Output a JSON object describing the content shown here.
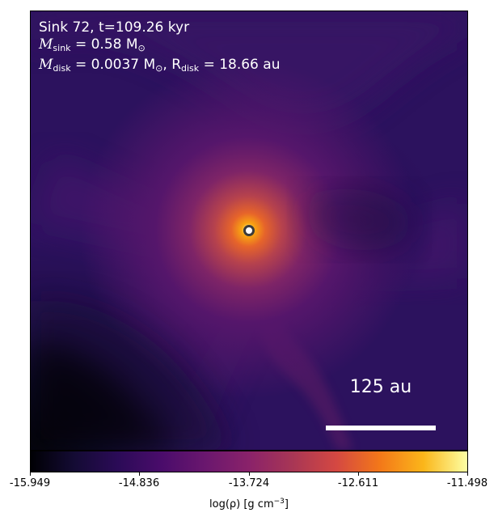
{
  "overlay": {
    "sink_line": "Sink 72, t=109.26 kyr",
    "msink_prefix": "M",
    "msink_subscript": "sink",
    "msink_value": "= 0.58 M",
    "msink_sun": "⊙",
    "mdisk_prefix": "M",
    "mdisk_subscript": "disk",
    "mdisk_value": "= 0.0037 M",
    "mdisk_sun": "⊙",
    "rdisk_separator": ", R",
    "rdisk_subscript": "disk",
    "rdisk_value": "= 18.66 au"
  },
  "scalebar": {
    "label": "125 au"
  },
  "colorbar": {
    "ticks": [
      "-15.949",
      "-14.836",
      "-13.724",
      "-12.611",
      "-11.498"
    ],
    "label_prefix": "log(ρ) [g cm",
    "label_exponent": "−3",
    "label_suffix": "]",
    "colormap": "inferno"
  },
  "colors": {
    "background": "#25105a",
    "text": "#ffffff",
    "sink_fill": "#ffffff",
    "sink_border": "#3b3b3b"
  }
}
